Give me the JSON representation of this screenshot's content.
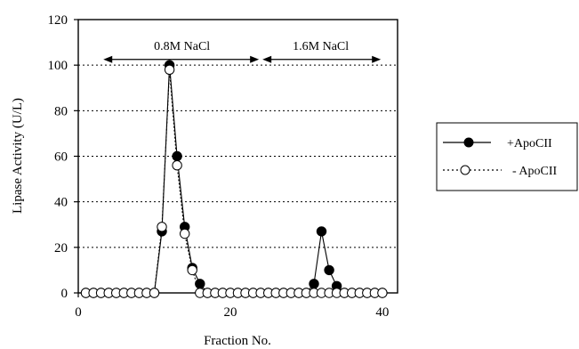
{
  "chart_data": {
    "type": "line",
    "xlabel": "Fraction No.",
    "ylabel": "Lipase Activity (U/L)",
    "xlim": [
      0,
      42
    ],
    "ylim": [
      0,
      120
    ],
    "xticks": [
      "0",
      "20",
      "40"
    ],
    "yticks": [
      "0",
      "20",
      "40",
      "60",
      "80",
      "100",
      "120"
    ],
    "grid": "horizontal dotted",
    "legend_position": "right",
    "annotations": [
      {
        "label": "0.8M NaCl",
        "x_start": 3.3,
        "x_end": 24
      },
      {
        "label": "1.6M NaCl",
        "x_start": 24,
        "x_end": 39.8
      }
    ],
    "series": [
      {
        "name": "+ApoCII",
        "marker": "filled-circle",
        "line_style": "solid",
        "x": [
          1,
          2,
          3,
          4,
          5,
          6,
          7,
          8,
          9,
          10,
          11,
          12,
          13,
          14,
          15,
          16,
          17,
          18,
          19,
          20,
          21,
          22,
          23,
          24,
          25,
          26,
          27,
          28,
          29,
          30,
          31,
          32,
          33,
          34,
          35,
          36,
          37,
          38,
          39,
          40
        ],
        "values": [
          0,
          0,
          0,
          0,
          0,
          0,
          0,
          0,
          0,
          0,
          27,
          100,
          60,
          29,
          11,
          4,
          0,
          0,
          0,
          0,
          0,
          0,
          0,
          0,
          0,
          0,
          0,
          0,
          0,
          0,
          4,
          27,
          10,
          3,
          0,
          0,
          0,
          0,
          0,
          0
        ]
      },
      {
        "name": "- ApoCII",
        "marker": "open-circle",
        "line_style": "dotted",
        "x": [
          1,
          2,
          3,
          4,
          5,
          6,
          7,
          8,
          9,
          10,
          11,
          12,
          13,
          14,
          15,
          16,
          17,
          18,
          19,
          20,
          21,
          22,
          23,
          24,
          25,
          26,
          27,
          28,
          29,
          30,
          31,
          32,
          33,
          34,
          35,
          36,
          37,
          38,
          39,
          40
        ],
        "values": [
          0,
          0,
          0,
          0,
          0,
          0,
          0,
          0,
          0,
          0,
          29,
          98,
          56,
          26,
          10,
          0,
          0,
          0,
          0,
          0,
          0,
          0,
          0,
          0,
          0,
          0,
          0,
          0,
          0,
          0,
          0,
          0,
          0,
          0,
          0,
          0,
          0,
          0,
          0,
          0
        ]
      }
    ]
  }
}
